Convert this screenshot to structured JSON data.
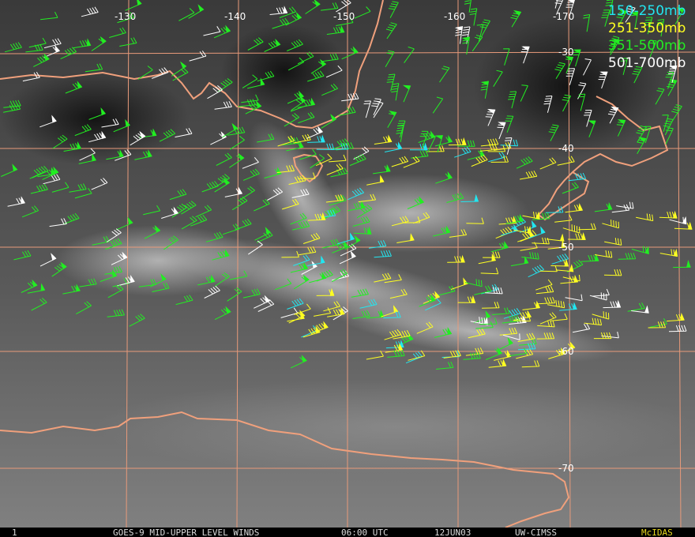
{
  "map": {
    "longitude_labels": [
      "-130",
      "-140",
      "-150",
      "-160",
      "-170"
    ],
    "latitude_labels": [
      "-30",
      "-40",
      "-50",
      "-60",
      "-70"
    ]
  },
  "legend": [
    "150-250mb",
    "251-350mb",
    "351-500mb",
    "501-700mb"
  ],
  "footer": {
    "frame": "1",
    "title": "GOES-9 MID-UPPER LEVEL WINDS",
    "time": "06:00 UTC",
    "date": "12JUN03",
    "source": "UW-CIMSS",
    "software": "McIDAS"
  }
}
